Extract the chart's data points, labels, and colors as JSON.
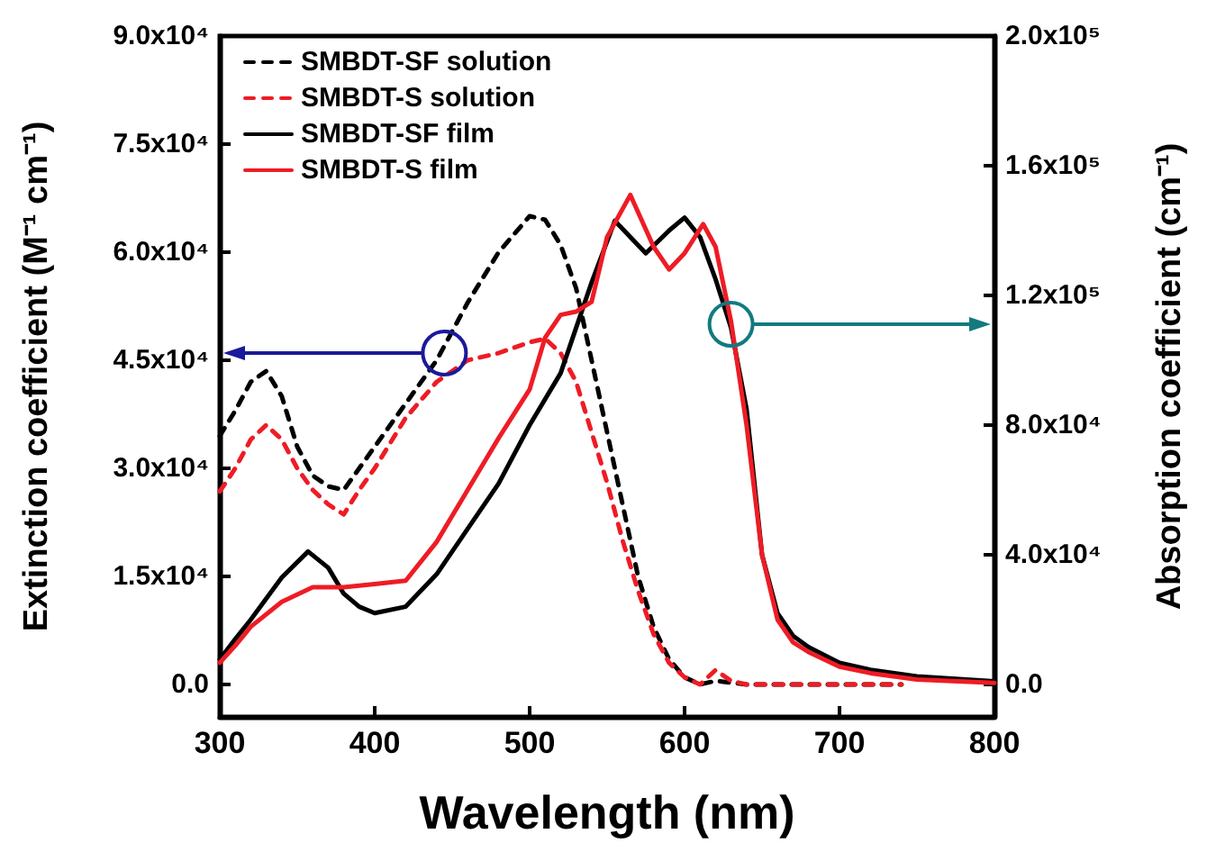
{
  "chart_data": {
    "type": "line",
    "xlabel": "Wavelength (nm)",
    "ylabel": "Extinction coefficient (M⁻¹ cm⁻¹)",
    "y2label": "Absorption coefficient (cm⁻¹)",
    "xlim": [
      300,
      800
    ],
    "xticks": [
      300,
      400,
      500,
      600,
      700,
      800
    ],
    "ylim": [
      -4500,
      90000
    ],
    "yticks": [
      {
        "value": 0,
        "label": "0.0"
      },
      {
        "value": 15000,
        "label": "1.5x10⁴"
      },
      {
        "value": 30000,
        "label": "3.0x10⁴"
      },
      {
        "value": 45000,
        "label": "4.5x10⁴"
      },
      {
        "value": 60000,
        "label": "6.0x10⁴"
      },
      {
        "value": 75000,
        "label": "7.5x10⁴"
      },
      {
        "value": 90000,
        "label": "9.0x10⁴"
      }
    ],
    "y2lim": [
      -10000,
      200000
    ],
    "y2ticks": [
      {
        "value": 0,
        "label": "0.0"
      },
      {
        "value": 40000,
        "label": "4.0x10⁴"
      },
      {
        "value": 80000,
        "label": "8.0x10⁴"
      },
      {
        "value": 120000,
        "label": "1.2x10⁵"
      },
      {
        "value": 160000,
        "label": "1.6x10⁵"
      },
      {
        "value": 200000,
        "label": "2.0x10⁵"
      }
    ],
    "legend": "top left",
    "grid": false,
    "marker": "none",
    "series": [
      {
        "name": "SMBDT-SF solution",
        "color": "#000000",
        "line_style": "dashed",
        "x": [
          300,
          310,
          320,
          330,
          340,
          350,
          360,
          370,
          380,
          390,
          400,
          420,
          440,
          460,
          480,
          500,
          510,
          520,
          530,
          540,
          550,
          560,
          570,
          580,
          590,
          600,
          610,
          620,
          640,
          680,
          740
        ],
        "values": [
          34500,
          38000,
          42000,
          43500,
          40000,
          33000,
          29000,
          27500,
          27000,
          30000,
          33000,
          39000,
          45000,
          53000,
          60000,
          65000,
          64500,
          61000,
          55000,
          45000,
          35000,
          25000,
          15000,
          8000,
          3500,
          1000,
          0,
          500,
          0,
          0,
          0
        ]
      },
      {
        "name": "SMBDT-S solution",
        "color": "#ee1c25",
        "line_style": "dashed",
        "x": [
          300,
          310,
          320,
          330,
          340,
          350,
          360,
          370,
          380,
          390,
          400,
          420,
          440,
          460,
          480,
          500,
          510,
          520,
          530,
          540,
          550,
          560,
          570,
          580,
          590,
          600,
          610,
          620,
          630,
          640,
          680,
          740
        ],
        "values": [
          26800,
          30000,
          34000,
          36000,
          34000,
          30000,
          27000,
          25000,
          23600,
          27000,
          30000,
          37000,
          42000,
          45000,
          46000,
          47500,
          48000,
          46000,
          42000,
          35000,
          28000,
          20000,
          13000,
          7000,
          3000,
          1000,
          0,
          2000,
          500,
          0,
          0,
          0
        ]
      },
      {
        "name": "SMBDT-SF film",
        "color": "#000000",
        "line_style": "solid",
        "axis": "y2",
        "x": [
          300,
          310,
          320,
          340,
          357,
          370,
          380,
          390,
          400,
          420,
          440,
          460,
          480,
          500,
          520,
          540,
          555,
          565,
          575,
          590,
          600,
          610,
          620,
          630,
          640,
          650,
          660,
          670,
          680,
          700,
          720,
          750,
          800
        ],
        "values": [
          7800,
          14000,
          20000,
          33000,
          41000,
          36000,
          28000,
          24000,
          22000,
          24000,
          34000,
          48000,
          62000,
          80000,
          96000,
          124000,
          143000,
          138000,
          133000,
          140000,
          144000,
          138000,
          125000,
          110000,
          85000,
          40000,
          22000,
          15000,
          11500,
          6700,
          4500,
          2500,
          1000
        ]
      },
      {
        "name": "SMBDT-S film",
        "color": "#ee1c25",
        "line_style": "solid",
        "axis": "y2",
        "x": [
          300,
          310,
          320,
          340,
          360,
          380,
          400,
          420,
          440,
          460,
          480,
          500,
          510,
          520,
          530,
          540,
          550,
          565,
          580,
          590,
          600,
          612,
          620,
          630,
          640,
          645,
          650,
          660,
          670,
          680,
          700,
          720,
          750,
          800
        ],
        "values": [
          6700,
          12000,
          17800,
          25500,
          30000,
          30000,
          31000,
          32000,
          44000,
          60000,
          76000,
          91000,
          107000,
          114000,
          115000,
          118000,
          138000,
          151000,
          135000,
          128000,
          133000,
          142000,
          135000,
          112000,
          80000,
          60000,
          40000,
          20000,
          13000,
          10000,
          5500,
          3500,
          1500,
          500
        ]
      }
    ]
  }
}
